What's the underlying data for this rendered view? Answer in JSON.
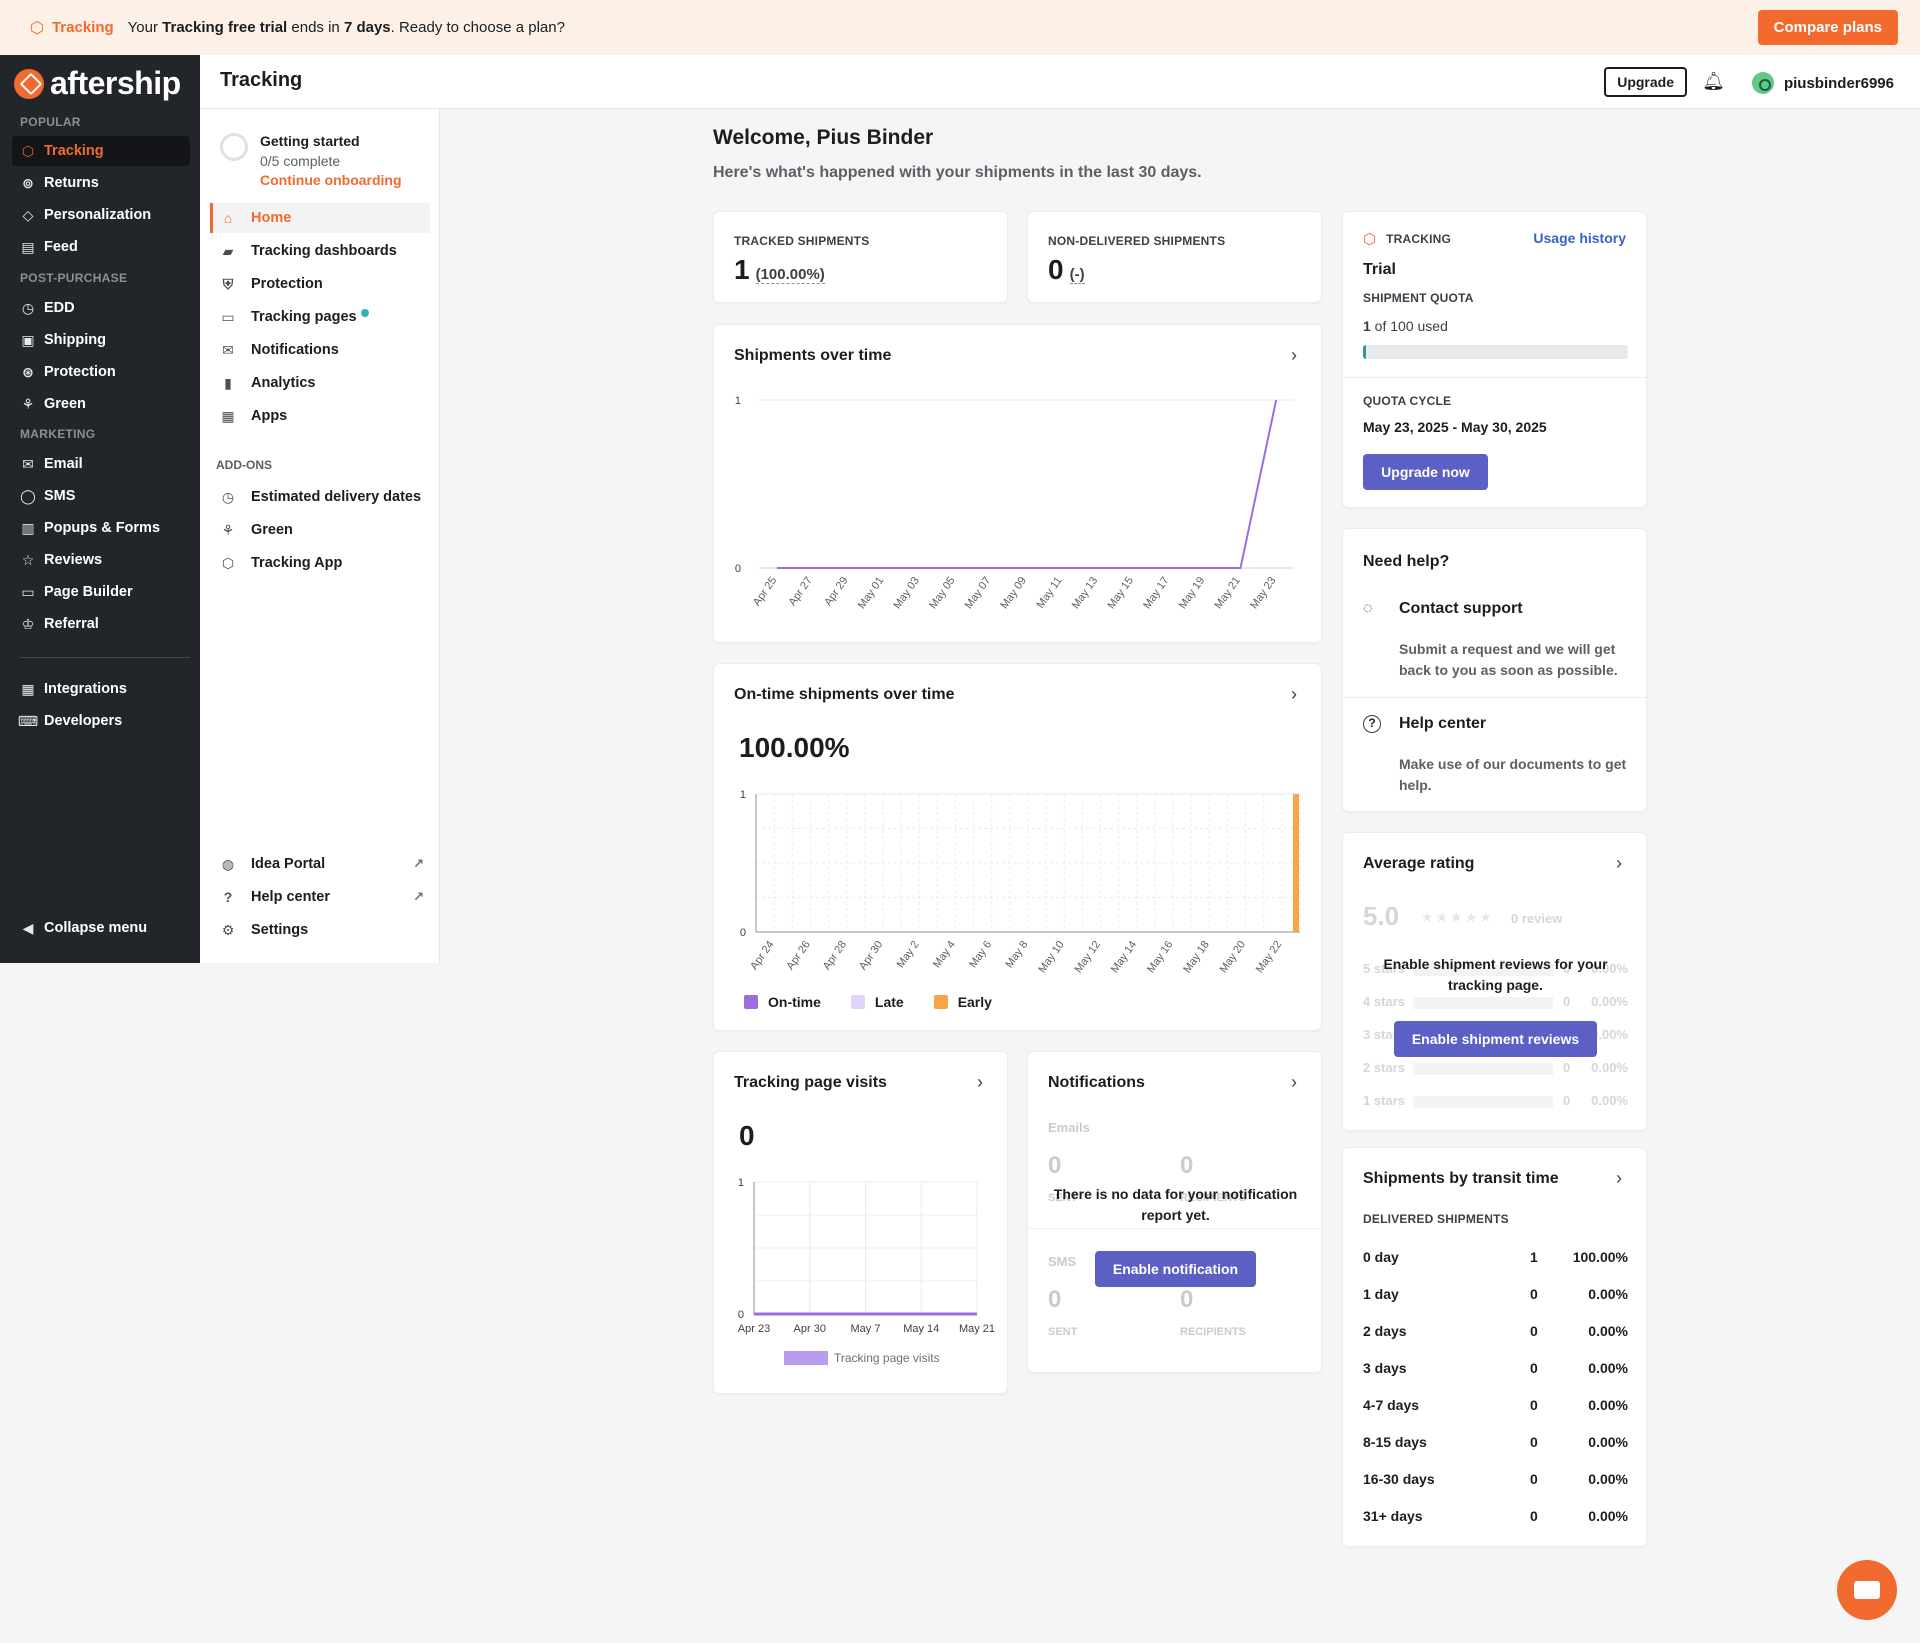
{
  "banner": {
    "product": "Tracking",
    "msg_pre": "Your ",
    "msg_bold1": "Tracking free trial",
    "msg_mid": " ends in ",
    "msg_bold2": "7 days",
    "msg_post": ". Ready to choose a plan?",
    "cta": "Compare plans"
  },
  "sidebar": {
    "brand": "aftership",
    "sections": {
      "popular": "POPULAR",
      "post_purchase": "POST-PURCHASE",
      "marketing": "MARKETING"
    },
    "items": [
      {
        "label": "Tracking",
        "icon": "box-icon"
      },
      {
        "label": "Returns",
        "icon": "returns-icon"
      },
      {
        "label": "Personalization",
        "icon": "diamond-icon"
      },
      {
        "label": "Feed",
        "icon": "feed-icon"
      },
      {
        "label": "EDD",
        "icon": "clock-icon"
      },
      {
        "label": "Shipping",
        "icon": "printer-icon"
      },
      {
        "label": "Protection",
        "icon": "shield-icon"
      },
      {
        "label": "Green",
        "icon": "leaf-icon"
      },
      {
        "label": "Email",
        "icon": "mail-icon"
      },
      {
        "label": "SMS",
        "icon": "chat-icon"
      },
      {
        "label": "Popups & Forms",
        "icon": "form-icon"
      },
      {
        "label": "Reviews",
        "icon": "star-icon"
      },
      {
        "label": "Page Builder",
        "icon": "page-icon"
      },
      {
        "label": "Referral",
        "icon": "crown-icon"
      },
      {
        "label": "Integrations",
        "icon": "grid-icon"
      },
      {
        "label": "Developers",
        "icon": "code-icon"
      }
    ],
    "collapse": "Collapse menu"
  },
  "topbar": {
    "title": "Tracking",
    "upgrade": "Upgrade",
    "username": "piusbinder6996"
  },
  "subnav": {
    "getting_started": {
      "title": "Getting started",
      "progress": "0/5 complete",
      "link": "Continue onboarding"
    },
    "items": [
      {
        "label": "Home"
      },
      {
        "label": "Tracking dashboards"
      },
      {
        "label": "Protection"
      },
      {
        "label": "Tracking pages"
      },
      {
        "label": "Notifications"
      },
      {
        "label": "Analytics"
      },
      {
        "label": "Apps"
      }
    ],
    "addons_label": "ADD-ONS",
    "addons": [
      {
        "label": "Estimated delivery dates"
      },
      {
        "label": "Green"
      },
      {
        "label": "Tracking App"
      }
    ],
    "bottom": [
      {
        "label": "Idea Portal"
      },
      {
        "label": "Help center"
      },
      {
        "label": "Settings"
      }
    ]
  },
  "main": {
    "welcome": "Welcome, Pius Binder",
    "subtitle": "Here's what's happened with your shipments in the last 30 days.",
    "tracked": {
      "label": "TRACKED SHIPMENTS",
      "value": "1",
      "pct": "(100.00%)"
    },
    "non_delivered": {
      "label": "NON-DELIVERED SHIPMENTS",
      "value": "0",
      "pct": "(-)"
    },
    "shipments_over_time": {
      "title": "Shipments over time"
    },
    "ontime": {
      "title": "On-time shipments over time",
      "value": "100.00%",
      "legend": [
        {
          "name": "On-time",
          "color": "#9b6ee0"
        },
        {
          "name": "Late",
          "color": "#e3d3fb"
        },
        {
          "name": "Early",
          "color": "#f7a645"
        }
      ]
    },
    "visits": {
      "title": "Tracking page visits",
      "value": "0",
      "legend": "Tracking page visits"
    },
    "notifications": {
      "title": "Notifications",
      "emails": "Emails",
      "sms": "SMS",
      "sent": "SENT",
      "recipients": "RECIPIENTS",
      "e_sent": "0",
      "e_rec": "0",
      "s_sent": "0",
      "s_rec": "0",
      "empty": "There is no data for your notification report yet.",
      "cta": "Enable notification"
    }
  },
  "quota": {
    "product": "TRACKING",
    "usage_link": "Usage history",
    "plan": "Trial",
    "quota_label": "SHIPMENT QUOTA",
    "used_num": "1",
    "used_text": " of 100 used",
    "used_fraction": 0.01,
    "cycle_label": "QUOTA CYCLE",
    "cycle": "May 23, 2025 - May 30, 2025",
    "cta": "Upgrade now"
  },
  "help": {
    "title": "Need help?",
    "contact": "Contact support",
    "contact_desc": "Submit a request and we will get back to you as soon as possible.",
    "center": "Help center",
    "center_desc": "Make use of our documents to get help."
  },
  "rating": {
    "title": "Average rating",
    "score": "5.0",
    "reviews": "0 review",
    "rows": [
      {
        "label": "5 stars",
        "count": "0",
        "pct": "0.00%"
      },
      {
        "label": "4 stars",
        "count": "0",
        "pct": "0.00%"
      },
      {
        "label": "3 stars",
        "count": "0",
        "pct": "0.00%"
      },
      {
        "label": "2 stars",
        "count": "0",
        "pct": "0.00%"
      },
      {
        "label": "1 stars",
        "count": "0",
        "pct": "0.00%"
      }
    ],
    "overlay": "Enable shipment reviews for your tracking page.",
    "cta": "Enable shipment reviews"
  },
  "transit": {
    "title": "Shipments by transit time",
    "sub": "DELIVERED SHIPMENTS",
    "rows": [
      {
        "label": "0 day",
        "count": "1",
        "pct": "100.00%"
      },
      {
        "label": "1 day",
        "count": "0",
        "pct": "0.00%"
      },
      {
        "label": "2 days",
        "count": "0",
        "pct": "0.00%"
      },
      {
        "label": "3 days",
        "count": "0",
        "pct": "0.00%"
      },
      {
        "label": "4-7 days",
        "count": "0",
        "pct": "0.00%"
      },
      {
        "label": "8-15 days",
        "count": "0",
        "pct": "0.00%"
      },
      {
        "label": "16-30 days",
        "count": "0",
        "pct": "0.00%"
      },
      {
        "label": "31+ days",
        "count": "0",
        "pct": "0.00%"
      }
    ]
  },
  "chart_data": [
    {
      "type": "line",
      "title": "Shipments over time",
      "x": [
        "Apr 25",
        "Apr 27",
        "Apr 29",
        "May 01",
        "May 03",
        "May 05",
        "May 07",
        "May 09",
        "May 11",
        "May 13",
        "May 15",
        "May 17",
        "May 19",
        "May 21",
        "May 23"
      ],
      "series": [
        {
          "values": [
            0,
            0,
            0,
            0,
            0,
            0,
            0,
            0,
            0,
            0,
            0,
            0,
            0,
            0,
            1
          ]
        }
      ],
      "ylim": [
        0,
        1
      ],
      "yticks": [
        "0",
        "1"
      ],
      "color": "#9b6ee0"
    },
    {
      "type": "bar",
      "title": "On-time shipments over time",
      "x": [
        "Apr 24",
        "Apr 26",
        "Apr 28",
        "Apr 30",
        "May 2",
        "May 4",
        "May 6",
        "May 8",
        "May 10",
        "May 12",
        "May 14",
        "May 16",
        "May 18",
        "May 20",
        "May 22"
      ],
      "series": [
        {
          "name": "On-time",
          "values": [
            0,
            0,
            0,
            0,
            0,
            0,
            0,
            0,
            0,
            0,
            0,
            0,
            0,
            0,
            0
          ]
        },
        {
          "name": "Late",
          "values": [
            0,
            0,
            0,
            0,
            0,
            0,
            0,
            0,
            0,
            0,
            0,
            0,
            0,
            0,
            0
          ]
        },
        {
          "name": "Early",
          "values": [
            0,
            0,
            0,
            0,
            0,
            0,
            0,
            0,
            0,
            0,
            0,
            0,
            0,
            0,
            1
          ]
        }
      ],
      "ylim": [
        0,
        1
      ],
      "yticks": [
        "0",
        "1"
      ]
    },
    {
      "type": "line",
      "title": "Tracking page visits",
      "x": [
        "Apr 23",
        "Apr 30",
        "May 7",
        "May 14",
        "May 21"
      ],
      "series": [
        {
          "name": "Tracking page visits",
          "values": [
            0,
            0,
            0,
            0,
            0
          ]
        }
      ],
      "ylim": [
        0,
        1
      ],
      "yticks": [
        "0",
        "1"
      ],
      "color": "#9b6ee0"
    }
  ]
}
